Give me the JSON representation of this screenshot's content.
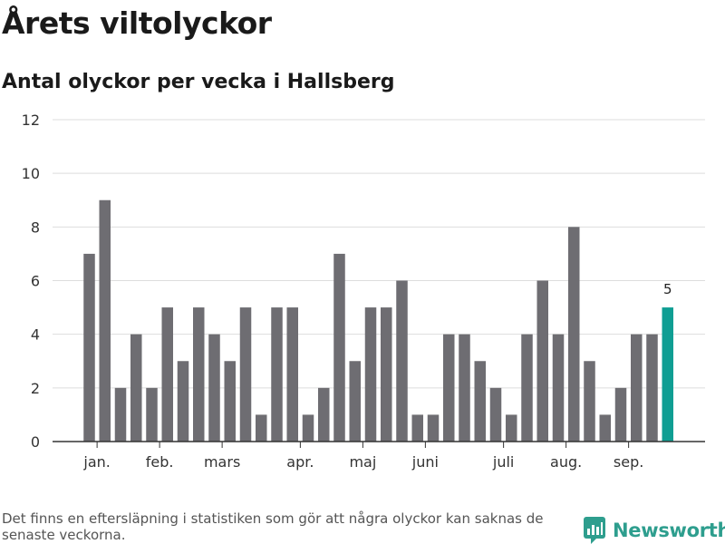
{
  "title": "Årets viltolyckor",
  "subtitle": "Antal olyckor per vecka i Hallsberg",
  "footnote": "Det finns en eftersläpning i statistiken som gör att några olyckor kan saknas de senaste veckorna.",
  "brand": {
    "name": "Newsworthy",
    "color": "#2e9e8e"
  },
  "colors": {
    "bar": "#6e6d72",
    "highlight": "#0f9e93",
    "grid": "#dddddd",
    "axis": "#333333"
  },
  "chart_data": {
    "type": "bar",
    "title": "Antal olyckor per vecka i Hallsberg",
    "xlabel": "",
    "ylabel": "",
    "ylim": [
      0,
      12
    ],
    "yticks": [
      0,
      2,
      4,
      6,
      8,
      10,
      12
    ],
    "values": [
      7,
      9,
      2,
      4,
      2,
      5,
      3,
      5,
      4,
      3,
      5,
      1,
      5,
      5,
      1,
      2,
      7,
      3,
      5,
      5,
      6,
      1,
      1,
      4,
      4,
      3,
      2,
      1,
      4,
      6,
      4,
      8,
      3,
      1,
      2,
      4,
      4,
      5
    ],
    "month_labels": [
      {
        "label": "jan.",
        "week": 1.5
      },
      {
        "label": "feb.",
        "week": 5.5
      },
      {
        "label": "mars",
        "week": 9.5
      },
      {
        "label": "apr.",
        "week": 14.5
      },
      {
        "label": "maj",
        "week": 18.5
      },
      {
        "label": "juni",
        "week": 22.5
      },
      {
        "label": "juli",
        "week": 27.5
      },
      {
        "label": "aug.",
        "week": 31.5
      },
      {
        "label": "sep.",
        "week": 35.5
      }
    ],
    "highlight_last": true,
    "last_value_label": "5",
    "grid": true
  }
}
